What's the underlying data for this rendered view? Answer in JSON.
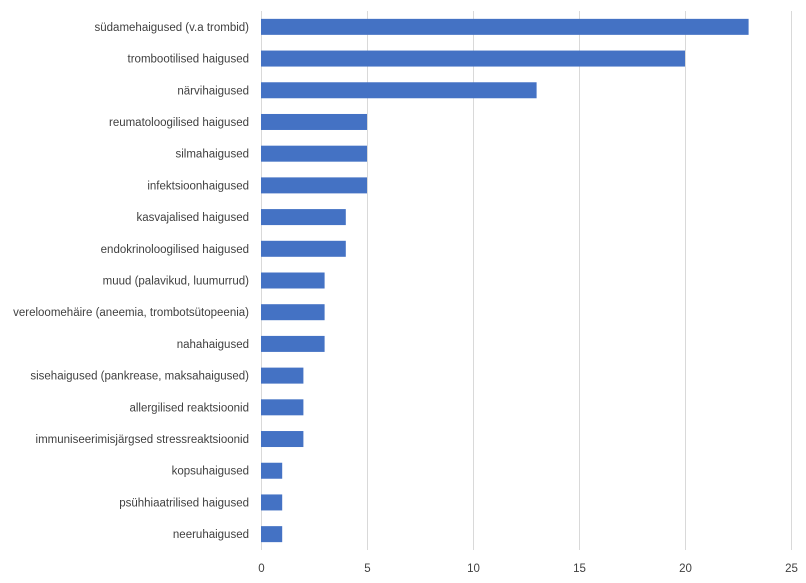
{
  "chart_data": {
    "type": "bar",
    "orientation": "horizontal",
    "title": "",
    "xlabel": "",
    "ylabel": "",
    "categories": [
      "südamehaigused (v.a trombid)",
      "trombootilised haigused",
      "närvihaigused",
      "reumatoloogilised haigused",
      "silmahaigused",
      "infektsioonhaigused",
      "kasvajalised haigused",
      "endokrinoloogilised haigused",
      "muud (palavikud, luumurrud)",
      "vereloomehäire (aneemia, trombotsütopeenia)",
      "nahahaigused",
      "sisehaigused (pankrease, maksahaigused)",
      "allergilised reaktsioonid",
      "immuniseerimisjärgsed stressreaktsioonid",
      "kopsuhaigused",
      "psühhiaatrilised haigused",
      "neeruhaigused"
    ],
    "values": [
      23,
      20,
      13,
      5,
      5,
      5,
      4,
      4,
      3,
      3,
      3,
      2,
      2,
      2,
      1,
      1,
      1
    ],
    "xlim": [
      0,
      25
    ],
    "xticks": [
      "0",
      "5",
      "10",
      "15",
      "20",
      "25"
    ],
    "grid": true,
    "bar_color": "#4472c4",
    "legend": "none"
  }
}
